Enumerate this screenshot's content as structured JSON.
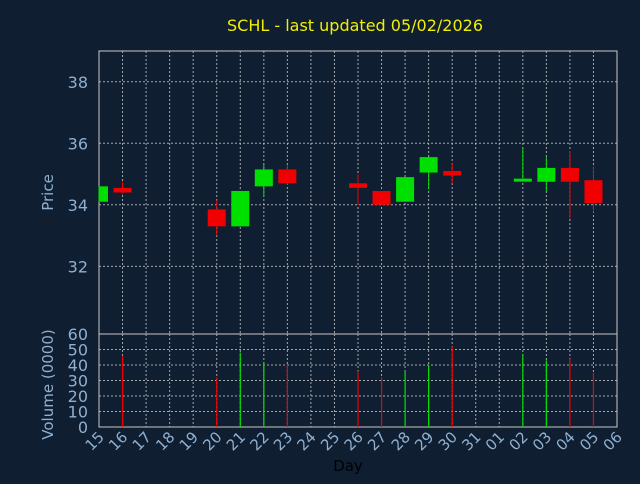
{
  "chart_data": {
    "type": "candlestick",
    "title": "SCHL - last updated 05/02/2026",
    "xlabel": "Day",
    "colors": {
      "background": "#0f1e31",
      "title": "#f0f000",
      "axis_text": "#8fb0d0",
      "frame": "#c8c8c8",
      "grid": "#c8c8c8",
      "up": "#00e000",
      "down": "#f00000"
    },
    "x_ticks": [
      "15",
      "16",
      "17",
      "18",
      "19",
      "20",
      "21",
      "22",
      "23",
      "24",
      "25",
      "26",
      "27",
      "28",
      "29",
      "30",
      "31",
      "01",
      "02",
      "03",
      "04",
      "05",
      "06"
    ],
    "price": {
      "ylabel": "Price",
      "ylim": [
        29.8,
        39
      ],
      "y_ticks": [
        32,
        34,
        36,
        38
      ],
      "grid": true,
      "candles": [
        {
          "day": "15",
          "open": 34.1,
          "high": 34.6,
          "low": 34.1,
          "close": 34.6
        },
        {
          "day": "16",
          "open": 34.55,
          "high": 34.75,
          "low": 34.35,
          "close": 34.4
        },
        {
          "day": "20",
          "open": 33.85,
          "high": 34.15,
          "low": 33.0,
          "close": 33.3
        },
        {
          "day": "21",
          "open": 33.3,
          "high": 34.45,
          "low": 33.3,
          "close": 34.45
        },
        {
          "day": "22",
          "open": 34.6,
          "high": 35.3,
          "low": 34.25,
          "close": 35.15
        },
        {
          "day": "23",
          "open": 35.15,
          "high": 35.3,
          "low": 34.65,
          "close": 34.7
        },
        {
          "day": "26",
          "open": 34.7,
          "high": 35.0,
          "low": 34.0,
          "close": 34.55
        },
        {
          "day": "27",
          "open": 34.45,
          "high": 34.45,
          "low": 34.0,
          "close": 34.0
        },
        {
          "day": "28",
          "open": 34.1,
          "high": 34.9,
          "low": 34.1,
          "close": 34.9
        },
        {
          "day": "29",
          "open": 35.05,
          "high": 35.55,
          "low": 34.5,
          "close": 35.55
        },
        {
          "day": "30",
          "open": 35.1,
          "high": 35.35,
          "low": 34.7,
          "close": 34.95
        },
        {
          "day": "02",
          "open": 34.8,
          "high": 35.85,
          "low": 34.8,
          "close": 34.85
        },
        {
          "day": "03",
          "open": 34.75,
          "high": 35.55,
          "low": 34.45,
          "close": 35.2
        },
        {
          "day": "04",
          "open": 35.2,
          "high": 35.75,
          "low": 33.55,
          "close": 34.75
        },
        {
          "day": "05",
          "open": 34.8,
          "high": 35.25,
          "low": 33.75,
          "close": 34.05
        }
      ]
    },
    "volume": {
      "ylabel": "Volume (0000)",
      "ylim": [
        0,
        60
      ],
      "y_ticks": [
        0,
        10,
        20,
        30,
        40,
        50,
        60
      ],
      "grid": true,
      "bars": [
        {
          "day": "16",
          "value": 46,
          "dir": "down"
        },
        {
          "day": "20",
          "value": 32,
          "dir": "down"
        },
        {
          "day": "21",
          "value": 48,
          "dir": "up"
        },
        {
          "day": "22",
          "value": 42,
          "dir": "up"
        },
        {
          "day": "23",
          "value": 40,
          "dir": "down"
        },
        {
          "day": "26",
          "value": 36,
          "dir": "down"
        },
        {
          "day": "27",
          "value": 32,
          "dir": "down"
        },
        {
          "day": "28",
          "value": 36,
          "dir": "up"
        },
        {
          "day": "29",
          "value": 40,
          "dir": "up"
        },
        {
          "day": "30",
          "value": 52,
          "dir": "down"
        },
        {
          "day": "02",
          "value": 47,
          "dir": "up"
        },
        {
          "day": "03",
          "value": 43,
          "dir": "up"
        },
        {
          "day": "04",
          "value": 44,
          "dir": "down"
        },
        {
          "day": "05",
          "value": 35,
          "dir": "down"
        }
      ]
    }
  }
}
